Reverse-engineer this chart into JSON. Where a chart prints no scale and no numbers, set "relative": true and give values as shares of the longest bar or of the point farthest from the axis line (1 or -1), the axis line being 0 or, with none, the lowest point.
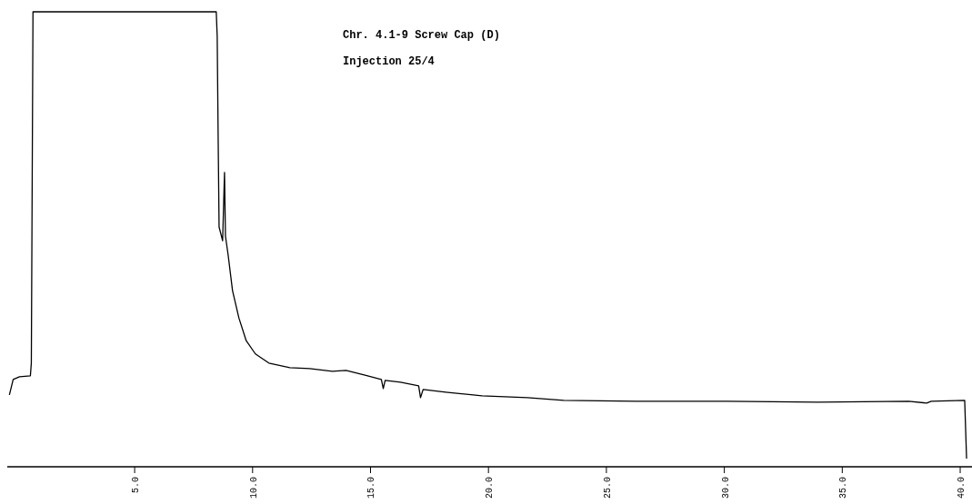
{
  "chart_data": {
    "type": "line",
    "relative": true,
    "annotations": [
      "Chr. 4.1-9 Screw Cap (D)",
      "Injection 25/4"
    ],
    "xlim": [
      -0.4,
      40.5
    ],
    "xticks": [
      {
        "value": 5,
        "label": "5.0"
      },
      {
        "value": 10,
        "label": "10.0"
      },
      {
        "value": 15,
        "label": "15.0"
      },
      {
        "value": 20,
        "label": "20.0"
      },
      {
        "value": 25,
        "label": "25.0"
      },
      {
        "value": 30,
        "label": "30.0"
      },
      {
        "value": 35,
        "label": "35.0"
      },
      {
        "value": 40,
        "label": "40.0"
      }
    ],
    "grid": false,
    "marker": "none",
    "line_style": "solid",
    "series": [
      {
        "color": "#000000",
        "x": [
          -0.31,
          -0.15,
          0.12,
          0.58,
          0.62,
          0.69,
          8.46,
          8.5,
          8.54,
          8.58,
          8.73,
          8.81,
          8.85,
          8.96,
          9.15,
          9.42,
          9.73,
          10.12,
          10.69,
          11.58,
          12.42,
          13.38,
          13.96,
          14.73,
          15.46,
          15.54,
          15.62,
          16.27,
          17.04,
          17.12,
          17.23,
          18.19,
          19.73,
          21.65,
          23.19,
          26.27,
          30.12,
          33.96,
          37.81,
          38.58,
          38.77,
          40.19,
          40.27
        ],
        "values": [
          0.158,
          0.192,
          0.198,
          0.2,
          0.228,
          1,
          1,
          0.946,
          0.727,
          0.527,
          0.497,
          0.647,
          0.507,
          0.467,
          0.387,
          0.327,
          0.277,
          0.248,
          0.228,
          0.218,
          0.216,
          0.21,
          0.212,
          0.202,
          0.192,
          0.172,
          0.19,
          0.186,
          0.178,
          0.152,
          0.17,
          0.164,
          0.156,
          0.152,
          0.146,
          0.144,
          0.144,
          0.142,
          0.144,
          0.14,
          0.144,
          0.146,
          0.018
        ]
      }
    ]
  }
}
